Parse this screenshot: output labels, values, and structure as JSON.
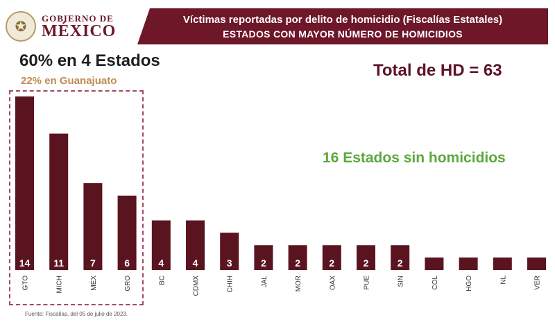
{
  "header": {
    "logo_line1": "GOBIERNO DE",
    "logo_line2": "MÉXICO",
    "logo_icon": "national-emblem-icon",
    "title": "Víctimas reportadas por delito de homicidio (Fiscalías Estatales)",
    "subtitle": "ESTADOS CON MAYOR NÚMERO DE HOMICIDIOS"
  },
  "annotations": {
    "headline": "60% en 4 Estados",
    "sub_headline": "22% en Guanajuato",
    "total": "Total de HD = 63",
    "no_homicides": "16 Estados sin homicidios"
  },
  "source": "Fuente: Fiscalías, del 05 de julio de 2023.",
  "colors": {
    "bar": "#5a1420",
    "header_band": "#6e1729",
    "accent_orange": "#c08a52",
    "accent_green": "#5aa83d",
    "box_border": "#a24b63"
  },
  "chart_data": {
    "type": "bar",
    "categories": [
      "GTO",
      "MICH",
      "MÉX",
      "GRO",
      "BC",
      "CDMX",
      "CHIH",
      "JAL",
      "MOR",
      "OAX",
      "PUE",
      "SIN",
      "COL",
      "HGO",
      "NL",
      "VER"
    ],
    "values": [
      14,
      11,
      7,
      6,
      4,
      4,
      3,
      2,
      2,
      2,
      2,
      2,
      1,
      1,
      1,
      1
    ],
    "data_labels": [
      "14",
      "11",
      "7",
      "6",
      "4",
      "4",
      "3",
      "2",
      "2",
      "2",
      "2",
      "2",
      "",
      "",
      "",
      ""
    ],
    "ylim": [
      0,
      14
    ],
    "grid": false,
    "legend": "none"
  }
}
